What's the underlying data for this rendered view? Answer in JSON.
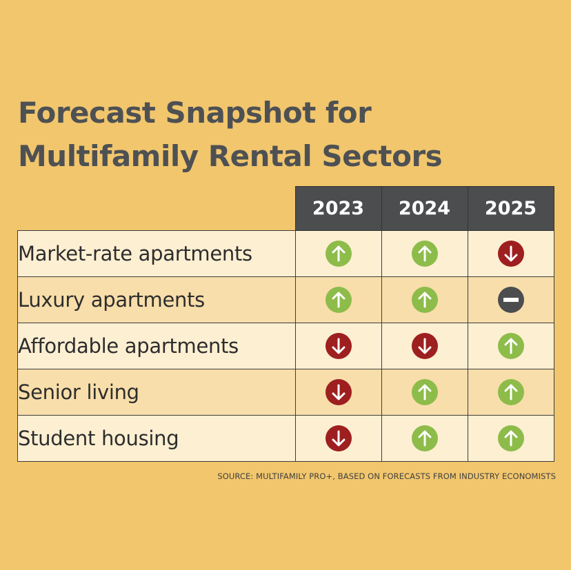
{
  "title": {
    "line1": "Forecast Snapshot for",
    "line2": "Multifamily Rental Sectors"
  },
  "source": "SOURCE: MULTIFAMILY PRO+, BASED ON FORECASTS FROM INDUSTRY ECONOMISTS",
  "colors": {
    "background": "#f2c66d",
    "header": "#4b4d4f",
    "up": "#8dbc4a",
    "down": "#9e1f1f",
    "flat": "#4b4d4f",
    "row_light": "#fdefd2",
    "row_dark": "#f8deaa"
  },
  "chart_data": {
    "type": "table",
    "columns": [
      "2023",
      "2024",
      "2025"
    ],
    "rows": [
      {
        "sector": "Market-rate apartments",
        "values": [
          "up",
          "up",
          "down"
        ]
      },
      {
        "sector": "Luxury apartments",
        "values": [
          "up",
          "up",
          "flat"
        ]
      },
      {
        "sector": "Affordable apartments",
        "values": [
          "down",
          "down",
          "up"
        ]
      },
      {
        "sector": "Senior living",
        "values": [
          "down",
          "up",
          "up"
        ]
      },
      {
        "sector": "Student housing",
        "values": [
          "down",
          "up",
          "up"
        ]
      }
    ],
    "icons": {
      "up": "arrow-up-icon",
      "down": "arrow-down-icon",
      "flat": "minus-icon"
    }
  }
}
